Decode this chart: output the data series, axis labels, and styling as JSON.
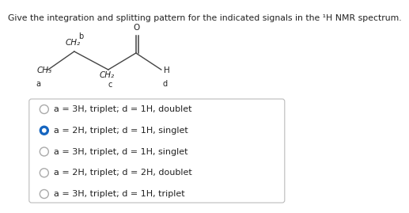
{
  "title": "Give the integration and splitting pattern for the indicated signals in the ¹H NMR spectrum.",
  "options": [
    {
      "text": "a = 3H, triplet; d = 1H, doublet",
      "selected": false
    },
    {
      "text": "a = 2H, triplet; d = 1H, singlet",
      "selected": true
    },
    {
      "text": "a = 3H, triplet, d = 1H, singlet",
      "selected": false
    },
    {
      "text": "a = 2H, triplet; d = 2H, doublet",
      "selected": false
    },
    {
      "text": "a = 3H, triplet; d = 1H, triplet",
      "selected": false
    }
  ],
  "selected_color": "#1565c0",
  "unselected_color": "#aaaaaa",
  "bg_color": "#ffffff",
  "box_edge_color": "#bbbbbb",
  "text_color": "#222222",
  "line_color": "#444444",
  "title_fontsize": 7.8,
  "option_fontsize": 8.0,
  "mol_fontsize": 7.5,
  "mol_label_fontsize": 7.0,
  "mol": {
    "CH3": "CH₃",
    "a": "a",
    "b": "b",
    "CH2_b": "CH₂",
    "CH2_c": "CH₂",
    "c": "c",
    "H": "H",
    "d": "d",
    "O": "O"
  }
}
